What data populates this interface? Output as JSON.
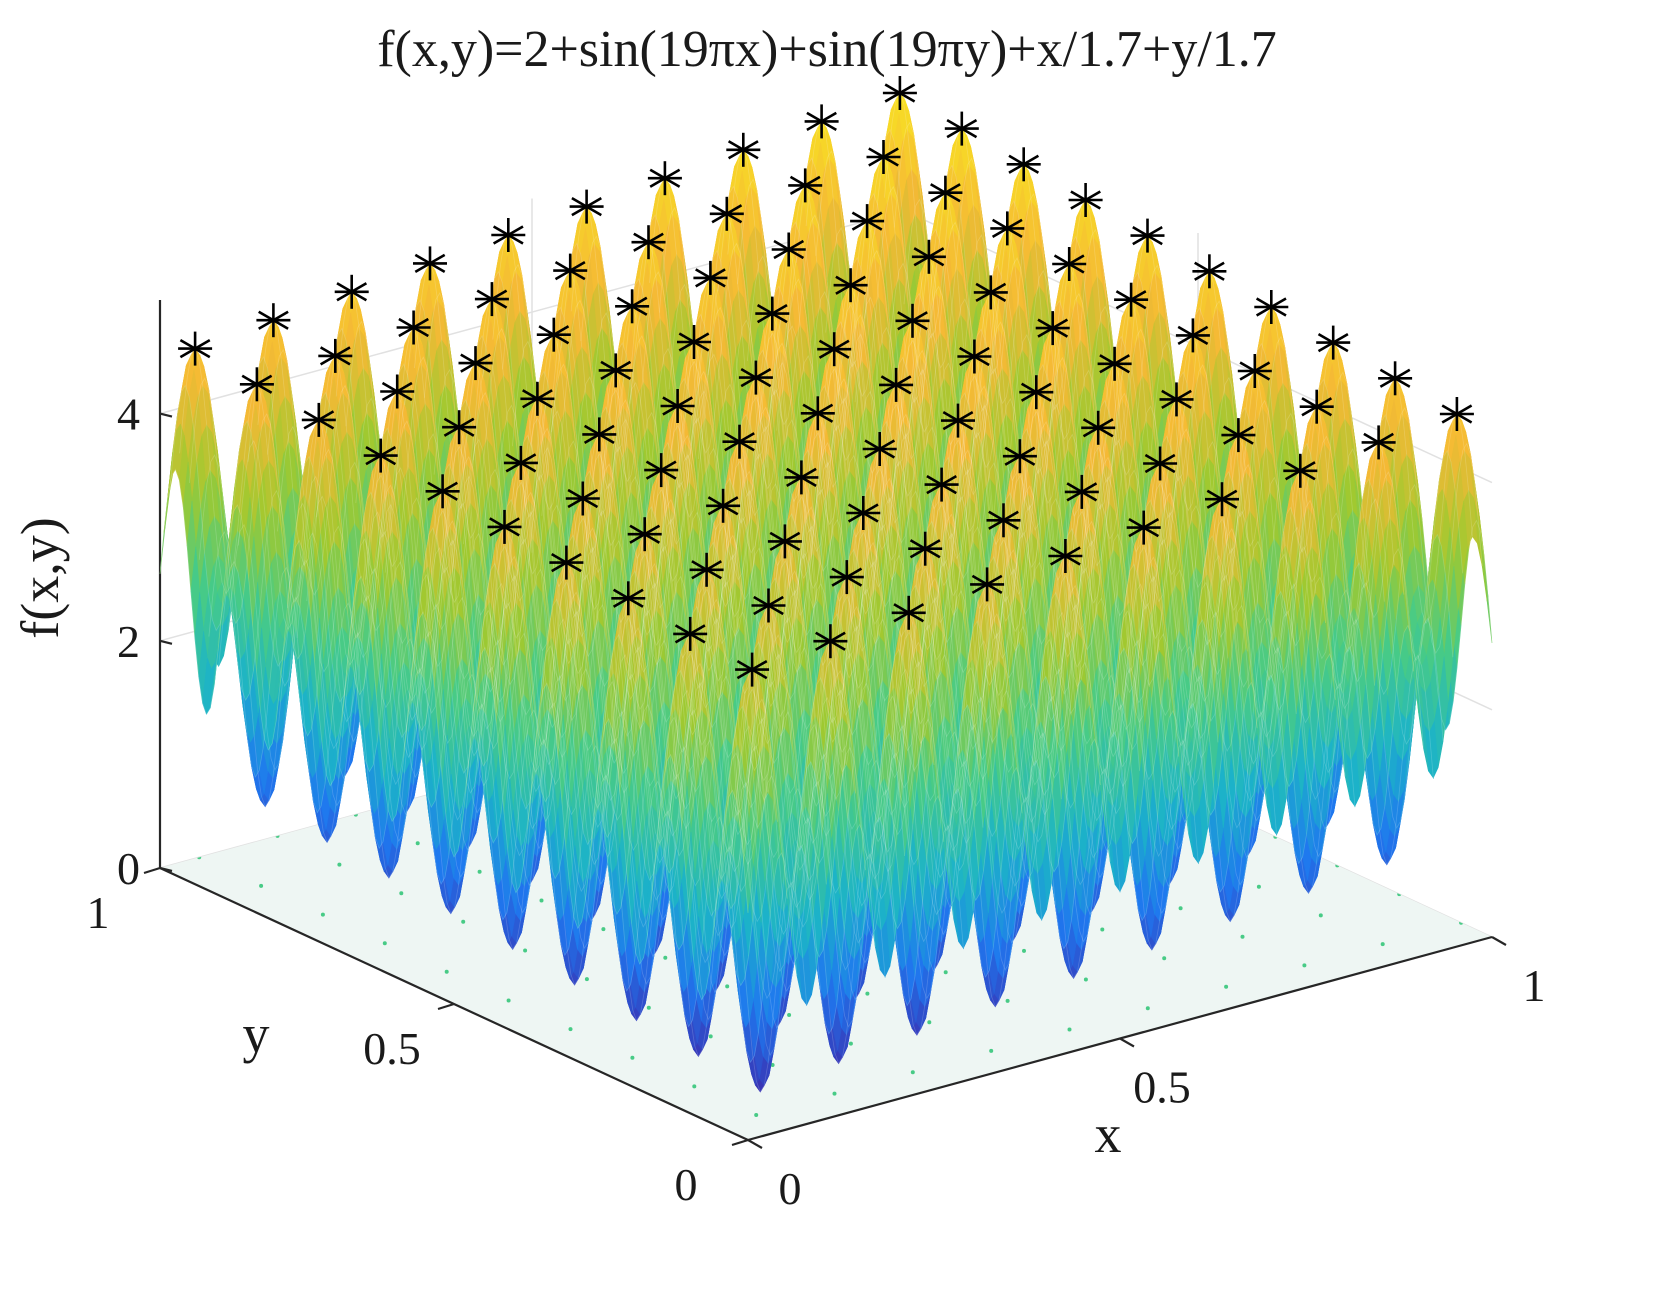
{
  "chart_data": {
    "type": "surface3d",
    "title": "f(x,y)=2+sin(19πx)+sin(19πy)+x/1.7+y/1.7",
    "function": {
      "constant": 2,
      "frequency_multiplier_of_pi": 19,
      "linear_divisor": 1.7
    },
    "xlabel": "x",
    "ylabel": "y",
    "zlabel": "f(x,y)",
    "xlim": [
      0,
      1
    ],
    "ylim": [
      0,
      1
    ],
    "zlim": [
      0,
      5
    ],
    "xticks": [
      "0",
      "0.5",
      "1"
    ],
    "yticks": [
      "0",
      "0.5",
      "1"
    ],
    "zticks": [
      "0",
      "2",
      "4"
    ],
    "grid": true,
    "colormap": [
      "#3e26a8",
      "#1f78ef",
      "#1cb3c8",
      "#48cb86",
      "#9fc930",
      "#f5b935",
      "#f8e621"
    ],
    "contour_plane_z": 0,
    "marker": "*",
    "marker_color": "#000000",
    "marker_note": "local maxima of the surface (peaks)"
  }
}
